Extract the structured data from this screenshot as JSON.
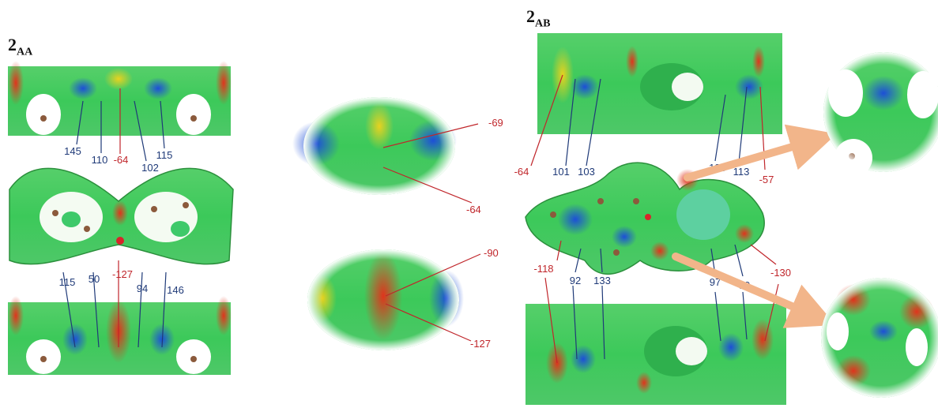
{
  "titles": {
    "aa_main": "2",
    "aa_sub": "AA",
    "ab_main": "2",
    "ab_sub": "AB"
  },
  "aa_labels": {
    "top": [
      "145",
      "110",
      "-64",
      "102",
      "115"
    ],
    "bottom": [
      "115",
      "50",
      "-127",
      "94",
      "146"
    ]
  },
  "zoom_labels": {
    "upper": [
      "-69",
      "-64"
    ],
    "lower": [
      "-90",
      "-127"
    ]
  },
  "ab_labels": {
    "upper": [
      "-64",
      "101",
      "103",
      "135",
      "113",
      "-57"
    ],
    "lower": [
      "-118",
      "92",
      "133",
      "97",
      "50",
      "-130"
    ]
  },
  "colors": {
    "positive": "#1d4fd8",
    "neutral": "#3cc95a",
    "negative": "#e0341c",
    "label_blue": "#1f3a78",
    "label_red": "#c0262b",
    "arrow": "#f2b58a"
  }
}
